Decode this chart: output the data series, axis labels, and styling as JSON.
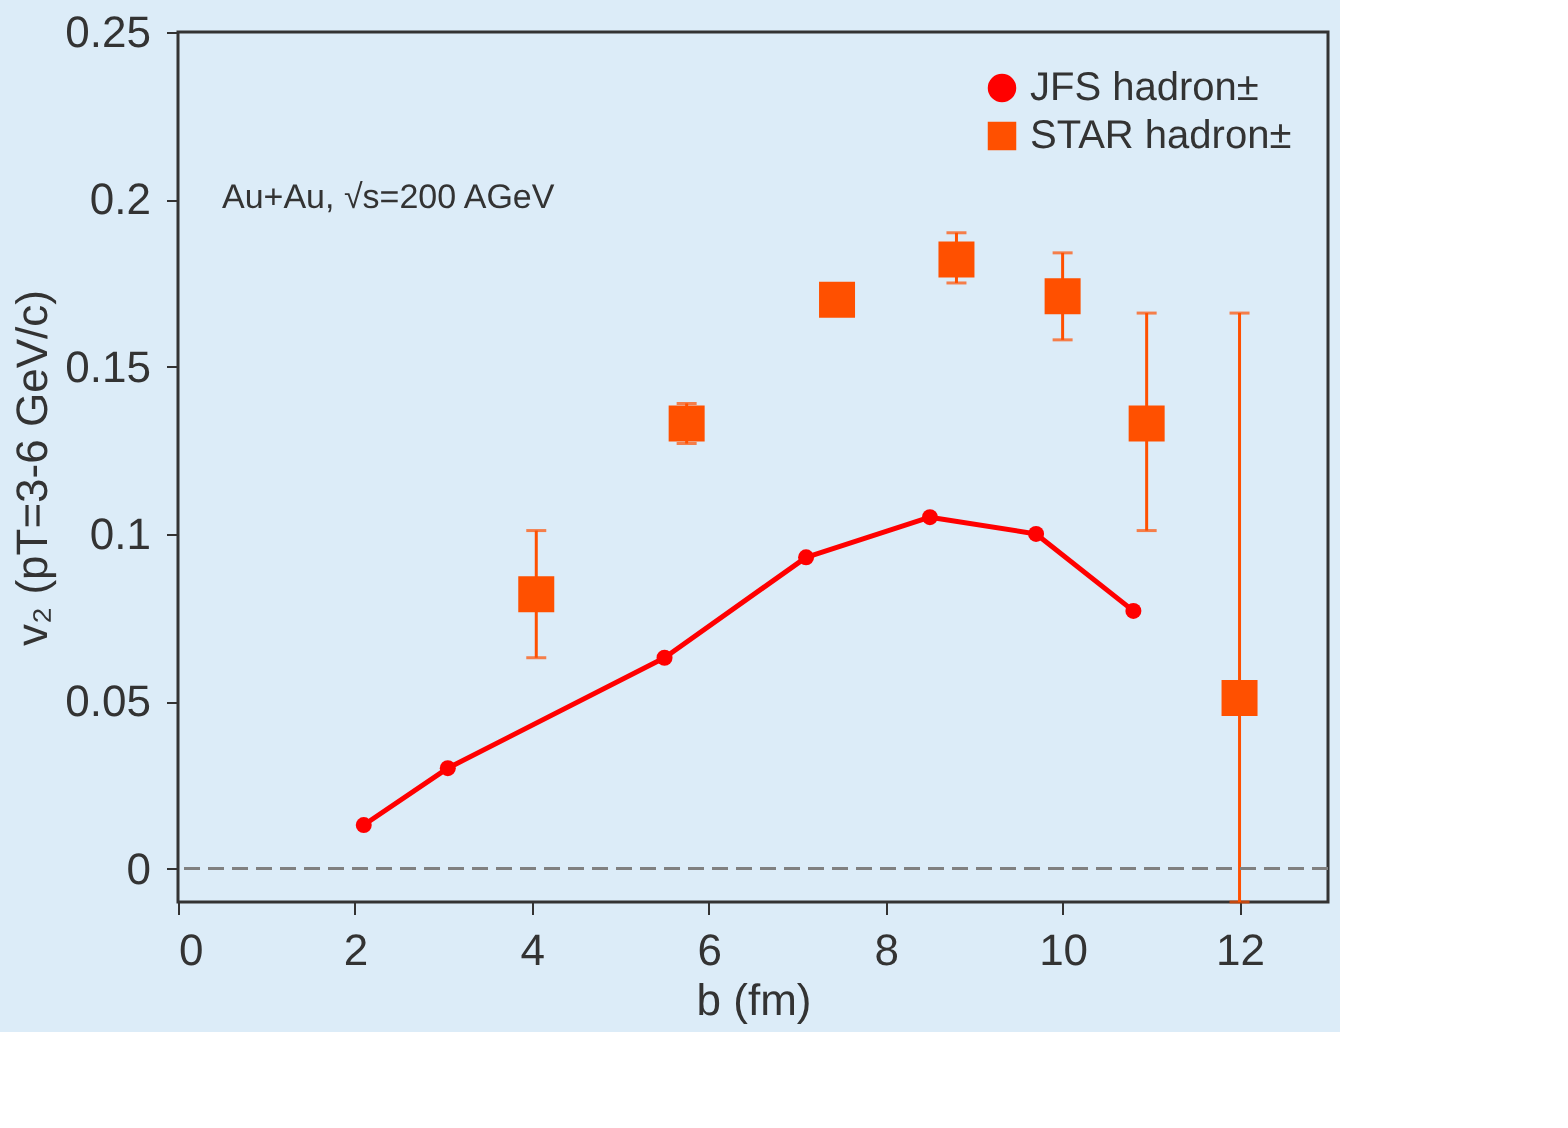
{
  "chart_data": {
    "type": "line",
    "xlabel": "b (fm)",
    "ylabel": "v₂ (pT=3-6 GeV/c)",
    "annotations": [
      "Au+Au, √s=200 AGeV"
    ],
    "xlim": [
      0,
      13
    ],
    "xticks": [
      0,
      2,
      4,
      6,
      8,
      10,
      12
    ],
    "ylim": [
      -0.01,
      0.25
    ],
    "yticks": [
      0,
      0.05,
      0.1,
      0.15,
      0.2,
      0.25
    ],
    "grid": false,
    "legend": "top right",
    "line_style": "solid",
    "ref_lines": [
      {
        "axis": "y",
        "value": 0,
        "color": "#808080",
        "line_style": "dashed"
      }
    ],
    "series": [
      {
        "name": "JFS hadron±",
        "marker": "circle",
        "color": "#ff0000",
        "x": [
          2.1,
          3.05,
          5.5,
          7.1,
          8.5,
          9.7,
          10.8
        ],
        "values": [
          0.013,
          0.03,
          0.063,
          0.093,
          0.105,
          0.1,
          0.077
        ]
      },
      {
        "name": "STAR hadron±",
        "type": "scatter",
        "marker": "square",
        "color": "#ff5000",
        "x": [
          4.05,
          5.75,
          7.45,
          8.8,
          10.0,
          10.95,
          12.0
        ],
        "values": [
          0.082,
          0.133,
          0.17,
          0.182,
          0.171,
          0.133,
          0.051
        ],
        "errors": [
          [
            0.063,
            0.101
          ],
          [
            0.127,
            0.139
          ],
          [
            0.166,
            0.174
          ],
          [
            0.175,
            0.19
          ],
          [
            0.158,
            0.184
          ],
          [
            0.101,
            0.166
          ],
          [
            -0.01,
            0.166
          ]
        ]
      }
    ]
  }
}
